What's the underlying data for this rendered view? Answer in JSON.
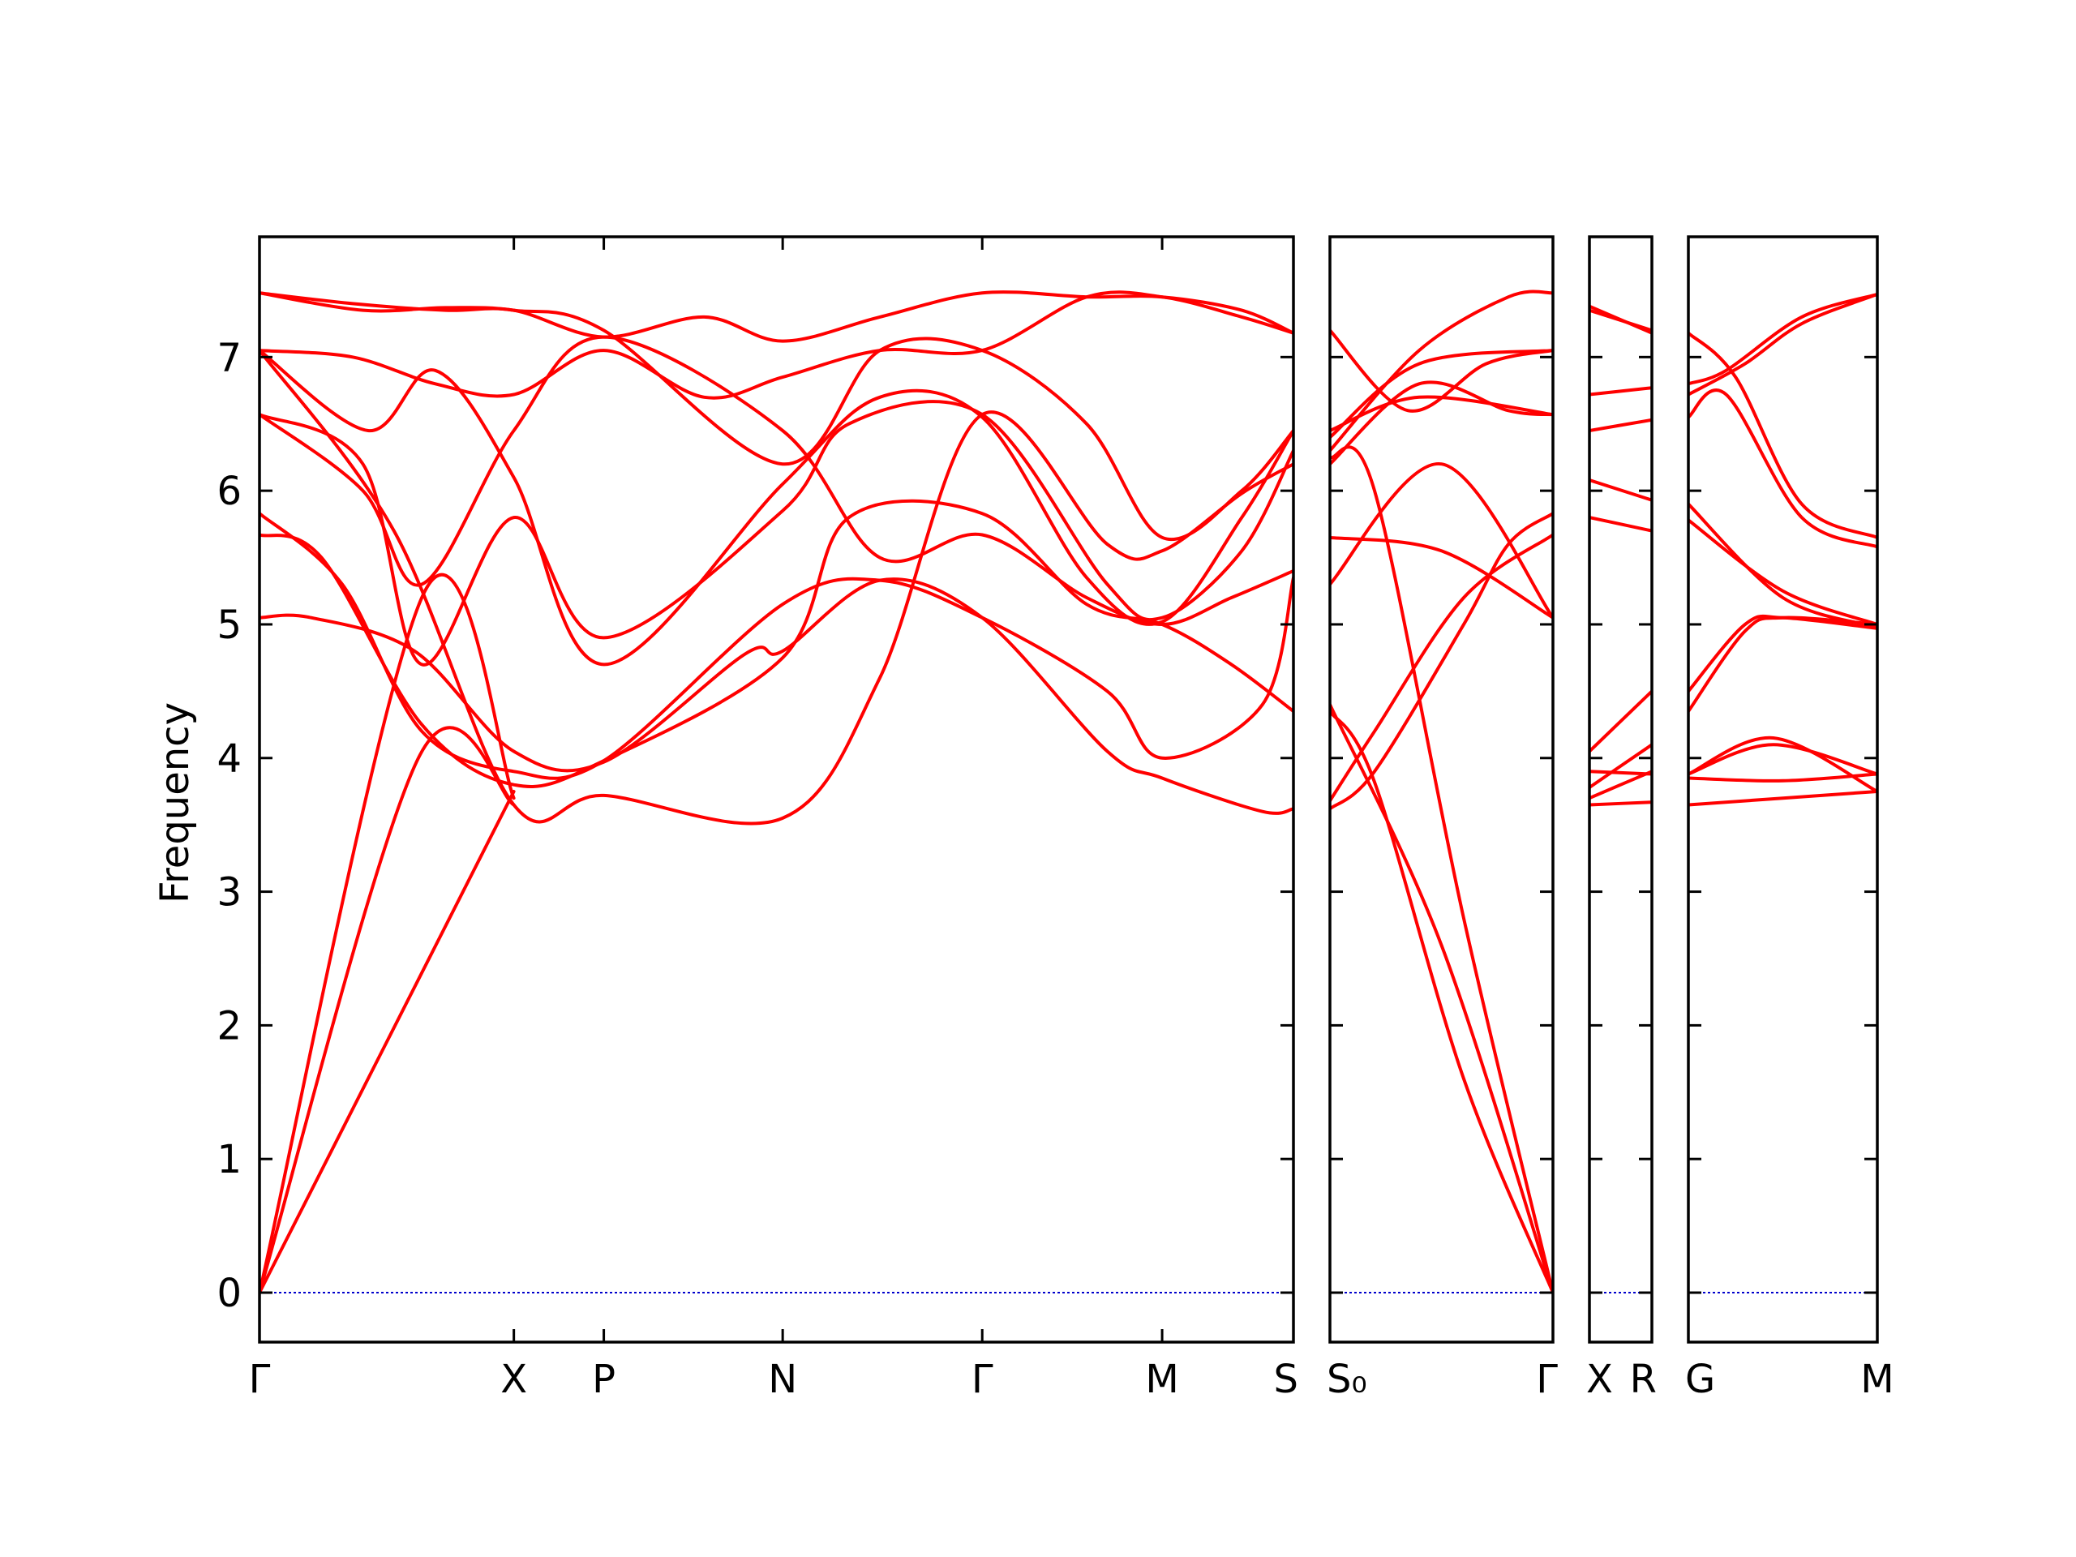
{
  "chart_data": {
    "type": "line",
    "title": "",
    "xlabel": "",
    "ylabel": "Frequency",
    "ylim": [
      -0.37,
      7.9
    ],
    "yticks": [
      0,
      1,
      2,
      3,
      4,
      5,
      6,
      7
    ],
    "grid": false,
    "colors": {
      "bands": "#ff0000",
      "zero_line": "#0000cc",
      "axes": "#000000"
    },
    "panels": [
      {
        "points": [
          {
            "label": "Γ",
            "x": 0
          },
          {
            "label": "X",
            "x": 0.246
          },
          {
            "label": "P",
            "x": 0.333
          },
          {
            "label": "N",
            "x": 0.506
          },
          {
            "label": "Γ",
            "x": 0.699
          },
          {
            "label": "M",
            "x": 0.873
          },
          {
            "label": "S",
            "x": 1.0
          }
        ],
        "bands": [
          {
            "x": [
              0,
              0.155,
              0.246
            ],
            "y": [
              0,
              4.02,
              3.65
            ]
          },
          {
            "x": [
              0,
              0.16,
              0.246
            ],
            "y": [
              0,
              5.25,
              3.7
            ]
          },
          {
            "x": [
              0,
              0.246
            ],
            "y": [
              0,
              3.75
            ]
          },
          {
            "x": [
              0,
              0.05,
              0.15,
              0.246,
              0.333,
              0.47,
              0.506,
              0.6,
              0.699,
              0.82,
              0.873,
              0.97,
              1.0
            ],
            "y": [
              5.05,
              5.05,
              4.8,
              4.05,
              3.97,
              4.78,
              4.8,
              5.33,
              5.05,
              4.05,
              3.85,
              3.6,
              3.62
            ]
          },
          {
            "x": [
              0,
              0.08,
              0.157,
              0.246,
              0.333,
              0.506,
              0.6,
              0.699,
              0.82,
              0.873,
              0.97,
              1.0
            ],
            "y": [
              5.83,
              5.3,
              4.2,
              3.9,
              3.98,
              5.15,
              5.33,
              5.05,
              4.5,
              4.0,
              4.4,
              5.35
            ]
          },
          {
            "x": [
              0,
              0.06,
              0.157,
              0.246,
              0.333,
              0.506,
              0.57,
              0.699,
              0.8,
              0.873,
              0.94,
              1.0
            ],
            "y": [
              5.67,
              5.5,
              4.25,
              3.8,
              3.98,
              4.75,
              5.8,
              5.83,
              5.15,
              5.0,
              4.7,
              4.35
            ]
          },
          {
            "x": [
              0,
              0.1,
              0.157,
              0.246,
              0.333,
              0.506,
              0.6,
              0.699,
              0.8,
              0.873,
              0.94,
              1.0
            ],
            "y": [
              6.57,
              6.0,
              5.3,
              6.45,
              7.15,
              6.45,
              5.5,
              5.67,
              5.2,
              5.0,
              5.2,
              5.4
            ]
          },
          {
            "x": [
              0,
              0.1,
              0.157,
              0.246,
              0.333,
              0.506,
              0.57,
              0.699,
              0.82,
              0.873,
              0.95,
              1.0
            ],
            "y": [
              6.57,
              6.2,
              4.7,
              5.8,
              4.9,
              5.85,
              6.5,
              6.57,
              5.3,
              5.05,
              5.55,
              6.3
            ]
          },
          {
            "x": [
              0,
              0.13,
              0.246,
              0.333,
              0.506,
              0.6,
              0.699,
              0.82,
              0.873,
              0.95,
              1.0
            ],
            "y": [
              7.05,
              5.7,
              3.65,
              3.72,
              3.55,
              4.6,
              6.57,
              5.6,
              5.55,
              5.98,
              6.2
            ]
          },
          {
            "x": [
              0,
              0.105,
              0.17,
              0.246,
              0.333,
              0.506,
              0.6,
              0.699,
              0.8,
              0.873,
              0.95,
              1.0
            ],
            "y": [
              7.05,
              6.45,
              6.9,
              6.1,
              4.7,
              6.05,
              6.7,
              6.55,
              5.35,
              5.02,
              5.8,
              6.45
            ]
          },
          {
            "x": [
              0,
              0.09,
              0.17,
              0.246,
              0.333,
              0.43,
              0.506,
              0.6,
              0.699,
              0.8,
              0.873,
              0.95,
              1.0
            ],
            "y": [
              7.05,
              7.0,
              6.8,
              6.72,
              7.05,
              6.7,
              6.85,
              7.05,
              7.05,
              7.45,
              7.45,
              7.3,
              7.18
            ]
          },
          {
            "x": [
              0,
              0.1,
              0.18,
              0.246,
              0.333,
              0.506,
              0.6,
              0.699,
              0.8,
              0.873,
              0.95,
              1.0
            ],
            "y": [
              7.48,
              7.35,
              7.37,
              7.35,
              7.2,
              6.2,
              7.05,
              7.05,
              6.5,
              5.65,
              6.0,
              6.45
            ]
          },
          {
            "x": [
              0,
              0.09,
              0.18,
              0.246,
              0.333,
              0.43,
              0.506,
              0.6,
              0.699,
              0.8,
              0.873,
              0.95,
              1.0
            ],
            "y": [
              7.48,
              7.4,
              7.35,
              7.35,
              7.15,
              7.3,
              7.12,
              7.3,
              7.48,
              7.45,
              7.45,
              7.35,
              7.18
            ]
          }
        ]
      },
      {
        "points": [
          {
            "label": "S₀",
            "x": 0
          },
          {
            "label": "Γ",
            "x": 1
          }
        ],
        "bands": [
          {
            "x": [
              0,
              0.2,
              0.6,
              1.0
            ],
            "y": [
              6.25,
              6.0,
              2.8,
              0
            ]
          },
          {
            "x": [
              0,
              0.5,
              1.0
            ],
            "y": [
              4.4,
              2.6,
              0
            ]
          },
          {
            "x": [
              0,
              0.2,
              0.6,
              1.0
            ],
            "y": [
              4.35,
              3.82,
              1.6,
              0
            ]
          },
          {
            "x": [
              0,
              0.2,
              0.6,
              0.8,
              1.0
            ],
            "y": [
              3.62,
              3.9,
              5.0,
              5.6,
              5.83
            ]
          },
          {
            "x": [
              0,
              0.2,
              0.6,
              1.0
            ],
            "y": [
              3.68,
              4.2,
              5.2,
              5.67
            ]
          },
          {
            "x": [
              0,
              0.5,
              1.0
            ],
            "y": [
              5.3,
              6.2,
              5.05
            ]
          },
          {
            "x": [
              0,
              0.5,
              1.0
            ],
            "y": [
              5.65,
              5.55,
              5.05
            ]
          },
          {
            "x": [
              0,
              0.4,
              1.0
            ],
            "y": [
              6.45,
              6.7,
              6.57
            ]
          },
          {
            "x": [
              0,
              0.4,
              0.8,
              1.0
            ],
            "y": [
              6.2,
              6.8,
              6.6,
              6.57
            ]
          },
          {
            "x": [
              0,
              0.4,
              1.0
            ],
            "y": [
              6.4,
              6.95,
              7.05
            ]
          },
          {
            "x": [
              0,
              0.35,
              0.7,
              1.0
            ],
            "y": [
              7.2,
              6.6,
              6.95,
              7.05
            ]
          },
          {
            "x": [
              0,
              0.4,
              0.8,
              1.0
            ],
            "y": [
              6.3,
              7.05,
              7.45,
              7.48
            ]
          }
        ]
      },
      {
        "points": [
          {
            "label": "X",
            "x": 0
          },
          {
            "label": "R",
            "x": 1
          }
        ],
        "bands": [
          {
            "x": [
              0,
              1.0
            ],
            "y": [
              3.65,
              3.67
            ]
          },
          {
            "x": [
              0,
              1.0
            ],
            "y": [
              3.7,
              3.9
            ]
          },
          {
            "x": [
              0,
              1.0
            ],
            "y": [
              3.78,
              4.1
            ]
          },
          {
            "x": [
              0,
              1.0
            ],
            "y": [
              3.9,
              3.88
            ]
          },
          {
            "x": [
              0,
              1.0
            ],
            "y": [
              4.05,
              4.5
            ]
          },
          {
            "x": [
              0,
              1.0
            ],
            "y": [
              5.8,
              5.7
            ]
          },
          {
            "x": [
              0,
              1.0
            ],
            "y": [
              6.08,
              5.93
            ]
          },
          {
            "x": [
              0,
              1.0
            ],
            "y": [
              6.45,
              6.53
            ]
          },
          {
            "x": [
              0,
              1.0
            ],
            "y": [
              6.72,
              6.77
            ]
          },
          {
            "x": [
              0,
              1.0
            ],
            "y": [
              7.35,
              7.2
            ]
          },
          {
            "x": [
              0,
              1.0
            ],
            "y": [
              7.38,
              7.18
            ]
          }
        ]
      },
      {
        "points": [
          {
            "label": "G",
            "x": 0
          },
          {
            "label": "M",
            "x": 1
          }
        ],
        "bands": [
          {
            "x": [
              0,
              1.0
            ],
            "y": [
              3.65,
              3.75
            ]
          },
          {
            "x": [
              0,
              0.5,
              1.0
            ],
            "y": [
              3.85,
              3.83,
              3.88
            ]
          },
          {
            "x": [
              0,
              0.45,
              1.0
            ],
            "y": [
              3.88,
              4.1,
              3.88
            ]
          },
          {
            "x": [
              0,
              0.45,
              1.0
            ],
            "y": [
              3.88,
              4.15,
              3.75
            ]
          },
          {
            "x": [
              0,
              0.3,
              0.5,
              1.0
            ],
            "y": [
              4.35,
              4.95,
              5.05,
              5.0
            ]
          },
          {
            "x": [
              0,
              0.3,
              0.5,
              1.0
            ],
            "y": [
              4.5,
              5.0,
              5.05,
              4.97
            ]
          },
          {
            "x": [
              0,
              0.5,
              1.0
            ],
            "y": [
              5.9,
              5.2,
              4.98
            ]
          },
          {
            "x": [
              0,
              0.5,
              1.0
            ],
            "y": [
              5.78,
              5.25,
              5.0
            ]
          },
          {
            "x": [
              0,
              0.2,
              0.6,
              1.0
            ],
            "y": [
              6.55,
              6.72,
              5.8,
              5.58
            ]
          },
          {
            "x": [
              0,
              0.2,
              0.6,
              1.0
            ],
            "y": [
              6.8,
              6.9,
              7.3,
              7.47
            ]
          },
          {
            "x": [
              0,
              0.25,
              0.6,
              1.0
            ],
            "y": [
              7.18,
              6.85,
              5.9,
              5.65
            ]
          },
          {
            "x": [
              0,
              0.3,
              0.6,
              1.0
            ],
            "y": [
              6.72,
              6.95,
              7.25,
              7.47
            ]
          }
        ]
      }
    ]
  }
}
